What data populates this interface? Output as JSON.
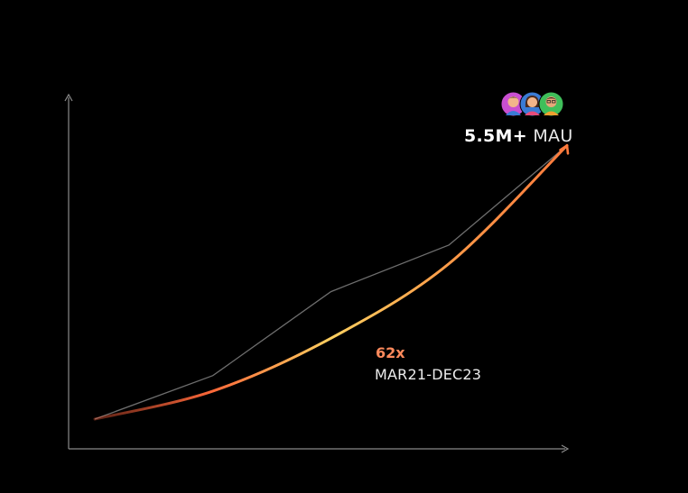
{
  "chart_data": {
    "type": "line",
    "series": [
      {
        "values": [
          0,
          0.14,
          0.41,
          0.56,
          0.88
        ]
      },
      {
        "values": [
          0,
          0.09,
          0.26,
          0.5,
          0.88
        ]
      }
    ],
    "grid": false,
    "colors": {
      "reference_line": "#6e6e6e",
      "growth_start": "#ff5e3a",
      "growth_mid": "#ffd060",
      "growth_end": "#ff7a3c",
      "axis": "#8a8a8a"
    }
  },
  "headline": {
    "value": "5.5M+",
    "unit": "MAU",
    "icons": [
      "avatar-boy-icon",
      "avatar-girl-icon",
      "avatar-man-icon"
    ]
  },
  "growth": {
    "multiplier": "62x",
    "period": "MAR21-DEC23"
  }
}
